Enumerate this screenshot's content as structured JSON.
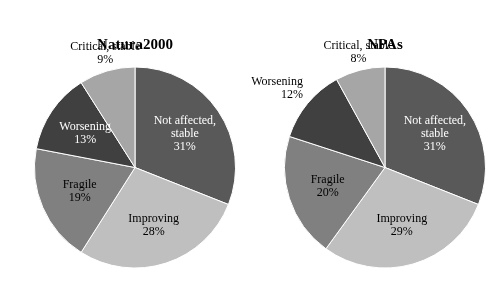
{
  "chart_data": [
    {
      "type": "pie",
      "title": "Natura2000",
      "categories": [
        "Not affected, stable",
        "Improving",
        "Fragile",
        "Worsening",
        "Critical, stable"
      ],
      "values": [
        31,
        28,
        19,
        13,
        9
      ],
      "value_labels": [
        "31%",
        "28%",
        "19%",
        "13%",
        "9%"
      ],
      "colors": [
        "#595959",
        "#bfbfbf",
        "#808080",
        "#404040",
        "#a6a6a6"
      ],
      "data_labels": true
    },
    {
      "type": "pie",
      "title": "NPAs",
      "categories": [
        "Not affected, stable",
        "Improving",
        "Fragile",
        "Worsening",
        "Critical, stable"
      ],
      "values": [
        31,
        29,
        20,
        12,
        8
      ],
      "value_labels": [
        "31%",
        "29%",
        "20%",
        "12%",
        "8%"
      ],
      "colors": [
        "#595959",
        "#bfbfbf",
        "#808080",
        "#404040",
        "#a6a6a6"
      ],
      "data_labels": true
    }
  ]
}
